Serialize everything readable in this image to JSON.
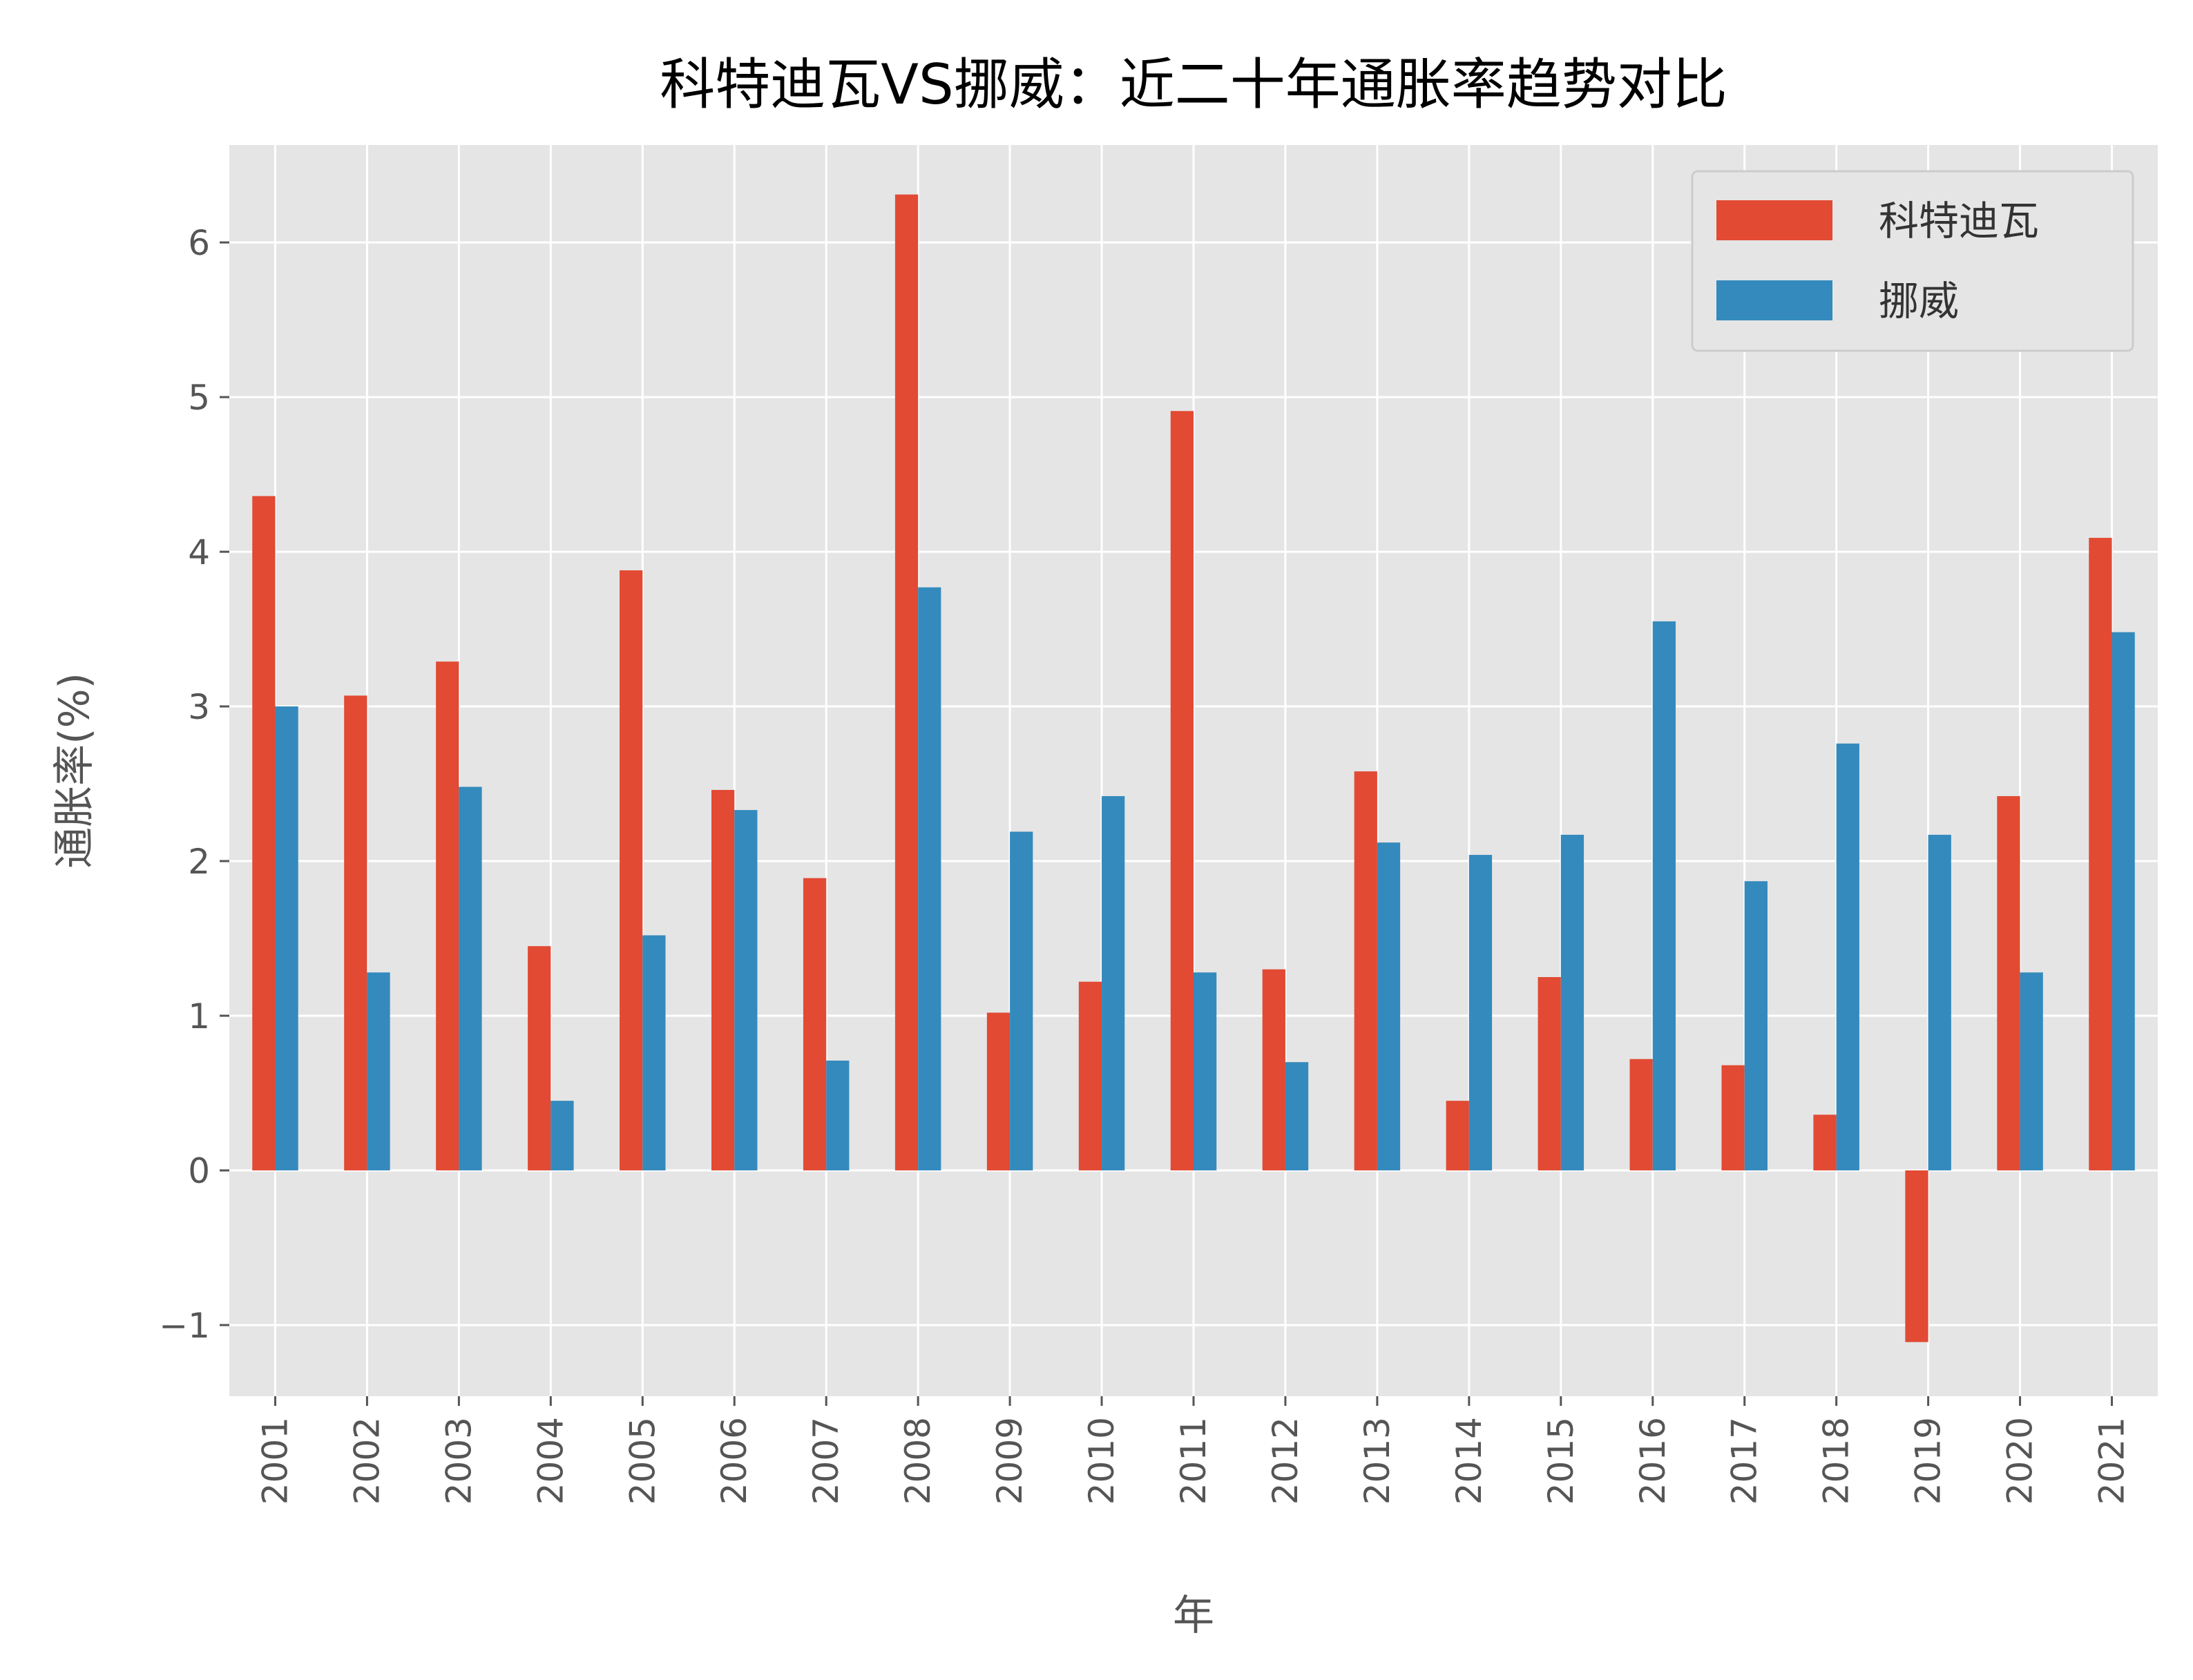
{
  "chart_data": {
    "type": "bar",
    "title": "科特迪瓦VS挪威：近二十年通胀率趋势对比",
    "xlabel": "年",
    "ylabel": "通胀率(%)",
    "categories": [
      "2001",
      "2002",
      "2003",
      "2004",
      "2005",
      "2006",
      "2007",
      "2008",
      "2009",
      "2010",
      "2011",
      "2012",
      "2013",
      "2014",
      "2015",
      "2016",
      "2017",
      "2018",
      "2019",
      "2020",
      "2021"
    ],
    "series": [
      {
        "name": "科特迪瓦",
        "color": "#E24A33",
        "values": [
          4.36,
          3.07,
          3.29,
          1.45,
          3.88,
          2.46,
          1.89,
          6.31,
          1.02,
          1.22,
          4.91,
          1.3,
          2.58,
          0.45,
          1.25,
          0.72,
          0.68,
          0.36,
          -1.11,
          2.42,
          4.09
        ]
      },
      {
        "name": "挪威",
        "color": "#348ABD",
        "values": [
          3.0,
          1.28,
          2.48,
          0.45,
          1.52,
          2.33,
          0.71,
          3.77,
          2.19,
          2.42,
          1.28,
          0.7,
          2.12,
          2.04,
          2.17,
          3.55,
          1.87,
          2.76,
          2.17,
          1.28,
          3.48
        ]
      }
    ],
    "yticks": [
      -1,
      0,
      1,
      2,
      3,
      4,
      5,
      6
    ],
    "ylim": [
      -1.46,
      6.63
    ],
    "grid": true,
    "legend_position": "top-right",
    "style": {
      "background": "#E5E5E5",
      "gridline": "#FFFFFF"
    }
  }
}
